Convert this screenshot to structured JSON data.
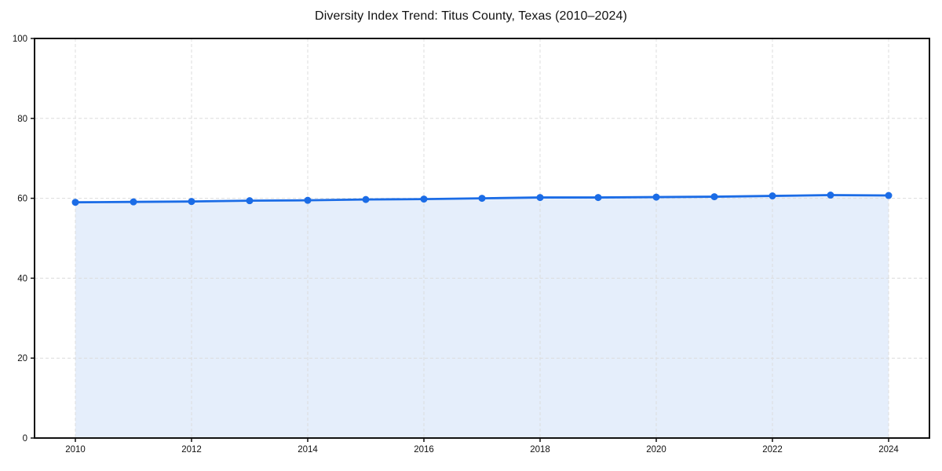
{
  "chart_data": {
    "type": "area",
    "title": "Diversity Index Trend: Titus County, Texas (2010–2024)",
    "xlabel": "",
    "ylabel": "",
    "x": [
      2010,
      2011,
      2012,
      2013,
      2014,
      2015,
      2016,
      2017,
      2018,
      2019,
      2020,
      2021,
      2022,
      2023,
      2024
    ],
    "series": [
      {
        "name": "Diversity Index",
        "values": [
          59.0,
          59.1,
          59.2,
          59.4,
          59.5,
          59.7,
          59.8,
          60.0,
          60.2,
          60.2,
          60.3,
          60.4,
          60.6,
          60.8,
          60.7
        ]
      }
    ],
    "ylim": [
      0,
      100
    ],
    "yticks": [
      0,
      20,
      40,
      60,
      80,
      100
    ],
    "xticks": [
      2010,
      2012,
      2014,
      2016,
      2018,
      2020,
      2022,
      2024
    ],
    "grid": "dashed",
    "legend": "none",
    "colors": {
      "line": "#1b6ce6",
      "marker": "#1b6ce6",
      "fill": "#e5eefb",
      "grid": "#dcdcdc",
      "axis": "#111111",
      "tick_text": "#111111",
      "background": "#ffffff"
    }
  }
}
